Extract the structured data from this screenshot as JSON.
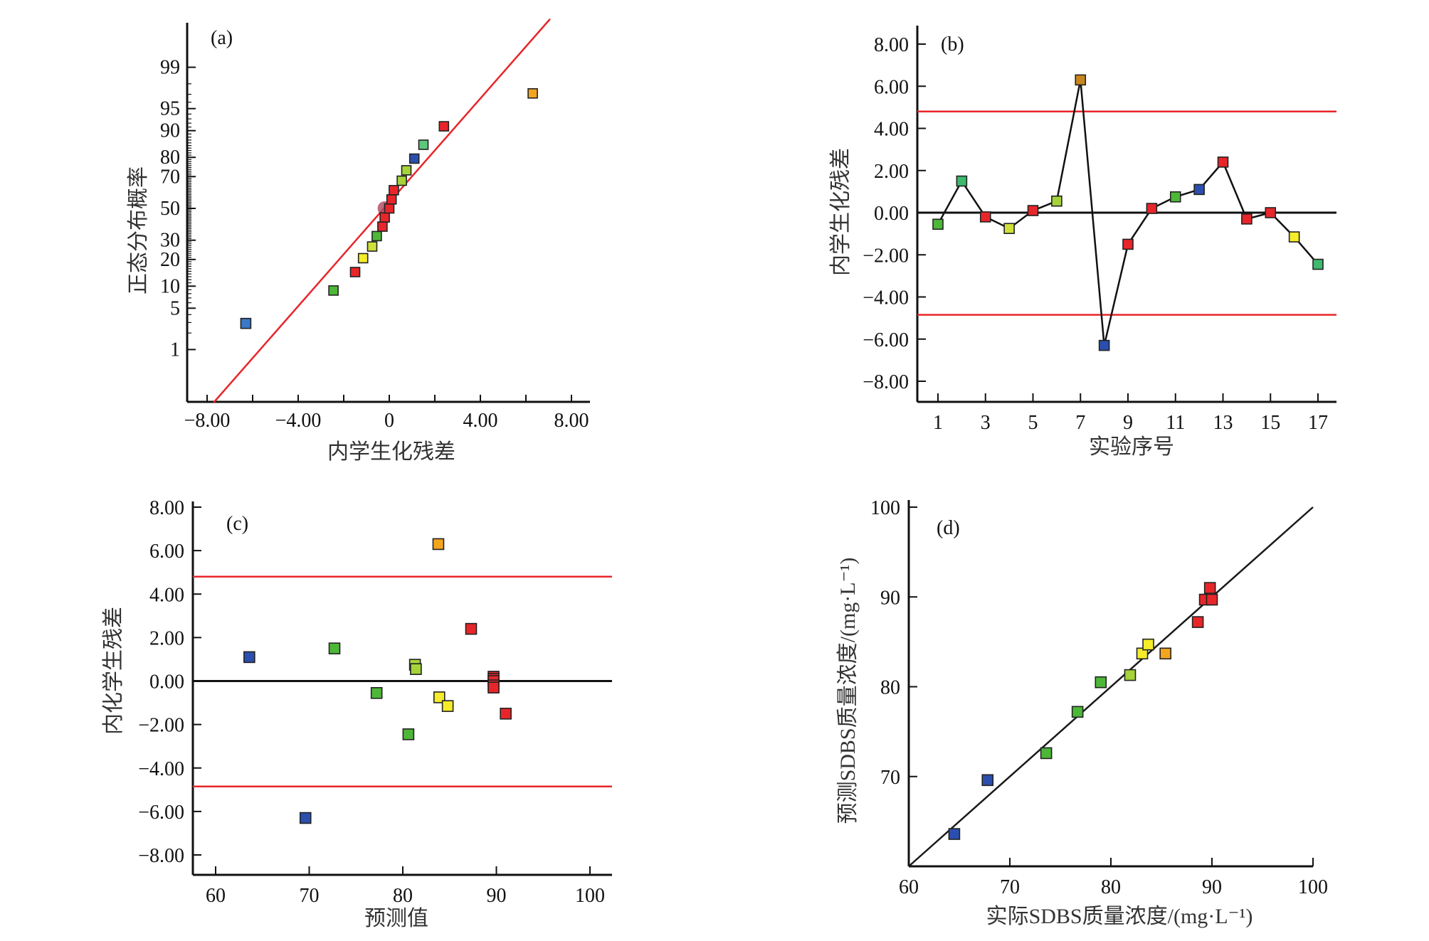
{
  "chart_data": [
    {
      "id": "a",
      "type": "scatter",
      "panel_label": "(a)",
      "xlabel": "内学生化残差",
      "ylabel": "正态分布概率",
      "xlim": [
        -8.6,
        8.6
      ],
      "x_ticks": [
        -8,
        -6,
        -4,
        -2,
        0,
        2,
        4,
        6,
        8
      ],
      "x_tick_labels": [
        "−8.00",
        "−4.00",
        "0",
        "4.00",
        "8.00"
      ],
      "x_tick_label_values": [
        -8,
        -4,
        0,
        4,
        8
      ],
      "y_scale": "normal-probability",
      "y_tick_values": [
        1,
        5,
        10,
        20,
        30,
        50,
        70,
        80,
        90,
        95,
        99
      ],
      "y_tick_labels": [
        "1",
        "5",
        "10",
        "20",
        "30",
        "50",
        "70",
        "80",
        "90",
        "95",
        "99"
      ],
      "points": [
        {
          "x": -6.3,
          "p": 2.9,
          "color": "#3a78c8"
        },
        {
          "x": -2.45,
          "p": 8.8,
          "color": "#4db838"
        },
        {
          "x": -1.5,
          "p": 14.7,
          "color": "#e8262a"
        },
        {
          "x": -1.15,
          "p": 20.6,
          "color": "#f5ec2a"
        },
        {
          "x": -0.75,
          "p": 26.5,
          "color": "#cfe03a"
        },
        {
          "x": -0.55,
          "p": 32.4,
          "color": "#4db838"
        },
        {
          "x": -0.3,
          "p": 38.2,
          "color": "#e8262a"
        },
        {
          "x": -0.2,
          "p": 44.1,
          "color": "#e8262a"
        },
        {
          "x": 0.0,
          "p": 50.0,
          "color": "#e8262a"
        },
        {
          "x": 0.1,
          "p": 55.9,
          "color": "#e8262a"
        },
        {
          "x": 0.2,
          "p": 61.8,
          "color": "#e8262a"
        },
        {
          "x": 0.55,
          "p": 67.6,
          "color": "#a6d33a"
        },
        {
          "x": 0.75,
          "p": 73.5,
          "color": "#a6d33a"
        },
        {
          "x": 1.1,
          "p": 79.4,
          "color": "#2b4fae"
        },
        {
          "x": 1.5,
          "p": 85.3,
          "color": "#5cc87a"
        },
        {
          "x": 2.4,
          "p": 91.2,
          "color": "#e8262a"
        },
        {
          "x": 6.3,
          "p": 97.1,
          "color": "#f2a51e"
        }
      ],
      "highlight": {
        "x": -0.2,
        "p": 50,
        "color": "#b0455e"
      },
      "reference_line": {
        "x": [
          -7.7,
          7.06
        ],
        "p": [
          0.07,
          99.91
        ],
        "color": "#e8262a"
      }
    },
    {
      "id": "b",
      "type": "line",
      "panel_label": "(b)",
      "xlabel": "实验序号",
      "ylabel": "内学生化残差",
      "xlim": [
        0.3,
        18.3
      ],
      "ylim": [
        -8.9,
        8.0
      ],
      "x_ticks": [
        1,
        3,
        5,
        7,
        9,
        11,
        13,
        15,
        17
      ],
      "x_tick_labels": [
        "1",
        "3",
        "5",
        "7",
        "9",
        "11",
        "13",
        "15",
        "17"
      ],
      "y_ticks": [
        8,
        6,
        4,
        2,
        0,
        -2,
        -4,
        -6,
        -8
      ],
      "y_tick_labels": [
        "8.00",
        "6.00",
        "4.00",
        "2.00",
        "0.00",
        "−2.00",
        "−4.00",
        "−6.00",
        "−8.00"
      ],
      "x": [
        1,
        2,
        3,
        4,
        5,
        6,
        7,
        8,
        9,
        10,
        11,
        12,
        13,
        14,
        15,
        16,
        17
      ],
      "values": [
        -0.55,
        1.5,
        -0.2,
        -0.75,
        0.1,
        0.55,
        6.3,
        -6.3,
        -1.5,
        0.2,
        0.75,
        1.1,
        2.4,
        -0.3,
        0.0,
        -1.15,
        -2.45
      ],
      "colors": [
        "#4db838",
        "#3dba6e",
        "#e8262a",
        "#cfe03a",
        "#e8262a",
        "#a6d33a",
        "#c8861e",
        "#2b4fae",
        "#e8262a",
        "#e8262a",
        "#4db838",
        "#2b4fae",
        "#e8262a",
        "#e8262a",
        "#e8262a",
        "#f5ec2a",
        "#3dba6e"
      ],
      "limits": {
        "upper": 4.8,
        "lower": -4.85,
        "color": "#e8262a"
      },
      "zero_line": 0
    },
    {
      "id": "c",
      "type": "scatter",
      "panel_label": "(c)",
      "xlabel": "预测值",
      "ylabel": "内化学生残差",
      "xlim": [
        57.6,
        102.4
      ],
      "ylim": [
        -8.9,
        8.0
      ],
      "x_ticks": [
        60,
        70,
        80,
        90,
        100
      ],
      "x_tick_labels": [
        "60",
        "70",
        "80",
        "90",
        "100"
      ],
      "y_ticks": [
        8,
        6,
        4,
        2,
        0,
        -2,
        -4,
        -6,
        -8
      ],
      "y_tick_labels": [
        "8.00",
        "6.00",
        "4.00",
        "2.00",
        "0.00",
        "−2.00",
        "−4.00",
        "−6.00",
        "−8.00"
      ],
      "points": [
        {
          "x": 63.6,
          "y": 1.1,
          "color": "#2b4fae"
        },
        {
          "x": 69.6,
          "y": -6.3,
          "color": "#2b4fae"
        },
        {
          "x": 72.7,
          "y": 1.5,
          "color": "#4db838"
        },
        {
          "x": 77.2,
          "y": -0.55,
          "color": "#4db838"
        },
        {
          "x": 80.6,
          "y": -2.45,
          "color": "#4db838"
        },
        {
          "x": 81.3,
          "y": 0.75,
          "color": "#a6d33a"
        },
        {
          "x": 81.4,
          "y": 0.55,
          "color": "#a6d33a"
        },
        {
          "x": 83.8,
          "y": 6.3,
          "color": "#f2a51e"
        },
        {
          "x": 83.9,
          "y": -0.75,
          "color": "#f5ec2a"
        },
        {
          "x": 84.8,
          "y": -1.15,
          "color": "#f5ec2a"
        },
        {
          "x": 87.3,
          "y": 2.4,
          "color": "#e8262a"
        },
        {
          "x": 89.7,
          "y": 0.2,
          "color": "#e8262a"
        },
        {
          "x": 89.7,
          "y": 0.1,
          "color": "#e8262a"
        },
        {
          "x": 89.7,
          "y": 0.0,
          "color": "#e8262a"
        },
        {
          "x": 89.7,
          "y": -0.2,
          "color": "#e8262a"
        },
        {
          "x": 89.7,
          "y": -0.3,
          "color": "#e8262a"
        },
        {
          "x": 91.0,
          "y": -1.5,
          "color": "#e8262a"
        }
      ],
      "limits": {
        "upper": 4.8,
        "lower": -4.85,
        "color": "#e8262a"
      },
      "zero_line": 0
    },
    {
      "id": "d",
      "type": "scatter",
      "panel_label": "(d)",
      "xlabel": "实际SDBS质量浓度/(mg·L⁻¹)",
      "ylabel": "预测SDBS质量浓度/(mg·L⁻¹)",
      "xlim": [
        60,
        100
      ],
      "ylim": [
        60,
        100
      ],
      "x_ticks": [
        60,
        70,
        80,
        90,
        100
      ],
      "x_tick_labels": [
        "60",
        "70",
        "80",
        "90",
        "100"
      ],
      "y_ticks": [
        70,
        80,
        90,
        100
      ],
      "y_tick_labels": [
        "70",
        "80",
        "90",
        "100"
      ],
      "points": [
        {
          "x": 64.5,
          "y": 63.6,
          "color": "#2b4fae"
        },
        {
          "x": 67.8,
          "y": 69.6,
          "color": "#2b4fae"
        },
        {
          "x": 73.6,
          "y": 72.6,
          "color": "#4db838"
        },
        {
          "x": 76.7,
          "y": 77.2,
          "color": "#4db838"
        },
        {
          "x": 79.0,
          "y": 80.5,
          "color": "#4db838"
        },
        {
          "x": 81.9,
          "y": 81.3,
          "color": "#a6d33a"
        },
        {
          "x": 83.1,
          "y": 83.7,
          "color": "#f5ec2a"
        },
        {
          "x": 83.7,
          "y": 84.7,
          "color": "#f5ec2a"
        },
        {
          "x": 85.4,
          "y": 83.7,
          "color": "#f2a51e"
        },
        {
          "x": 88.6,
          "y": 87.2,
          "color": "#e8262a"
        },
        {
          "x": 89.3,
          "y": 89.7,
          "color": "#e8262a"
        },
        {
          "x": 90.0,
          "y": 89.7,
          "color": "#e8262a"
        },
        {
          "x": 89.8,
          "y": 91.0,
          "color": "#e8262a"
        }
      ],
      "identity_line": {
        "x": [
          60,
          100
        ],
        "y": [
          60,
          100
        ],
        "color": "#1a1a1a"
      }
    }
  ]
}
